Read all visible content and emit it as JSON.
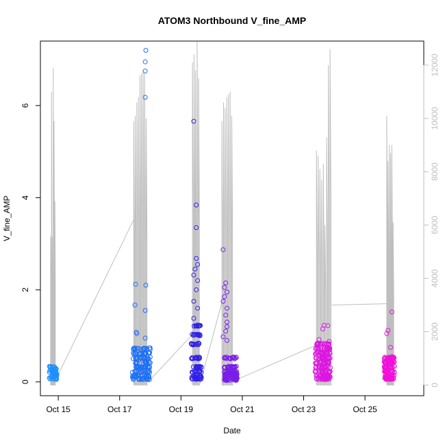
{
  "chart_data": {
    "type": "scatter",
    "title": "ATOM3 Northbound V_fine_AMP",
    "xlabel": "Date",
    "ylabel": "V_fine_AMP",
    "x_axis": {
      "kind": "date",
      "range": [
        "2023-10-14T10:00",
        "2023-10-26T22:00"
      ],
      "ticks": [
        {
          "value": "2023-10-15T00:00",
          "label": "Oct 15"
        },
        {
          "value": "2023-10-17T00:00",
          "label": "Oct 17"
        },
        {
          "value": "2023-10-19T00:00",
          "label": "Oct 19"
        },
        {
          "value": "2023-10-21T00:00",
          "label": "Oct 21"
        },
        {
          "value": "2023-10-23T00:00",
          "label": "Oct 23"
        },
        {
          "value": "2023-10-25T00:00",
          "label": "Oct 25"
        }
      ]
    },
    "y_axis": {
      "range": [
        -0.3,
        7.4
      ],
      "ticks": [
        0,
        2,
        4,
        6
      ]
    },
    "y2_axis": {
      "range": [
        -400,
        12900
      ],
      "ticks": [
        0,
        2000,
        4000,
        6000,
        8000,
        10000,
        12000
      ],
      "color": "#bebebe"
    },
    "grid": false,
    "point_clusters": [
      {
        "color": "#1e90ff",
        "center": "2023-10-14T20:00",
        "spread_hours": 3,
        "n": 60,
        "base_values": [
          0.05,
          0.1,
          0.15,
          0.2,
          0.25,
          0.3
        ],
        "outliers": []
      },
      {
        "color": "#1c6ff8",
        "center": "2023-10-17T17:00",
        "spread_hours": 7,
        "n": 140,
        "base_values": [
          0.05,
          0.1,
          0.2,
          0.3,
          0.4,
          0.5,
          0.6,
          0.7
        ],
        "outliers": [
          {
            "x": "2023-10-17T20:30",
            "y": 7.2
          },
          {
            "x": "2023-10-17T20:00",
            "y": 6.95
          },
          {
            "x": "2023-10-17T20:00",
            "y": 6.75
          },
          {
            "x": "2023-10-17T20:00",
            "y": 6.18
          },
          {
            "x": "2023-10-17T12:30",
            "y": 2.12
          },
          {
            "x": "2023-10-17T20:30",
            "y": 2.1
          },
          {
            "x": "2023-10-17T12:00",
            "y": 1.67
          },
          {
            "x": "2023-10-17T20:00",
            "y": 1.55
          },
          {
            "x": "2023-10-17T13:00",
            "y": 1.08
          },
          {
            "x": "2023-10-17T13:30",
            "y": 1.05
          },
          {
            "x": "2023-10-17T20:00",
            "y": 0.95
          }
        ]
      },
      {
        "color": "#3020e8",
        "center": "2023-10-19T12:00",
        "spread_hours": 4,
        "n": 110,
        "base_values": [
          0.05,
          0.1,
          0.2,
          0.3,
          0.5,
          0.8,
          1.0,
          1.2
        ],
        "outliers": [
          {
            "x": "2023-10-19T10:00",
            "y": 5.66
          },
          {
            "x": "2023-10-19T12:00",
            "y": 3.84
          },
          {
            "x": "2023-10-19T12:00",
            "y": 3.35
          },
          {
            "x": "2023-10-19T12:00",
            "y": 2.68
          },
          {
            "x": "2023-10-19T13:00",
            "y": 2.55
          },
          {
            "x": "2023-10-19T11:00",
            "y": 2.45
          },
          {
            "x": "2023-10-19T10:00",
            "y": 2.32
          },
          {
            "x": "2023-10-19T13:00",
            "y": 2.2
          },
          {
            "x": "2023-10-19T12:00",
            "y": 2.0
          },
          {
            "x": "2023-10-19T10:00",
            "y": 1.75
          },
          {
            "x": "2023-10-19T13:00",
            "y": 1.6
          },
          {
            "x": "2023-10-19T10:00",
            "y": 1.38
          }
        ]
      },
      {
        "color": "#7a1fe8",
        "center": "2023-10-20T15:00",
        "spread_hours": 5,
        "n": 160,
        "base_values": [
          0.03,
          0.06,
          0.1,
          0.15,
          0.2,
          0.3,
          0.5
        ],
        "outliers": [
          {
            "x": "2023-10-20T09:00",
            "y": 2.87
          },
          {
            "x": "2023-10-20T11:00",
            "y": 2.15
          },
          {
            "x": "2023-10-20T10:00",
            "y": 2.05
          },
          {
            "x": "2023-10-20T12:00",
            "y": 1.95
          },
          {
            "x": "2023-10-20T10:00",
            "y": 1.85
          },
          {
            "x": "2023-10-20T09:00",
            "y": 1.75
          },
          {
            "x": "2023-10-20T12:00",
            "y": 1.6
          },
          {
            "x": "2023-10-20T11:00",
            "y": 1.45
          },
          {
            "x": "2023-10-20T12:00",
            "y": 1.3
          },
          {
            "x": "2023-10-20T12:00",
            "y": 1.2
          },
          {
            "x": "2023-10-20T11:00",
            "y": 1.1
          },
          {
            "x": "2023-10-20T09:00",
            "y": 0.98
          },
          {
            "x": "2023-10-20T12:00",
            "y": 0.9
          }
        ]
      },
      {
        "color": "#dd16e0",
        "center": "2023-10-23T15:00",
        "spread_hours": 6,
        "n": 170,
        "base_values": [
          0.05,
          0.1,
          0.2,
          0.3,
          0.4,
          0.5,
          0.6,
          0.7,
          0.8
        ],
        "outliers": [
          {
            "x": "2023-10-23T16:00",
            "y": 1.23
          },
          {
            "x": "2023-10-23T19:00",
            "y": 1.22
          },
          {
            "x": "2023-10-23T15:00",
            "y": 1.15
          },
          {
            "x": "2023-10-23T12:00",
            "y": 0.92
          },
          {
            "x": "2023-10-23T20:00",
            "y": 0.88
          }
        ]
      },
      {
        "color": "#f010d8",
        "center": "2023-10-25T19:00",
        "spread_hours": 4,
        "n": 120,
        "base_values": [
          0.05,
          0.1,
          0.2,
          0.3,
          0.4,
          0.5
        ],
        "outliers": [
          {
            "x": "2023-10-25T21:00",
            "y": 1.52
          },
          {
            "x": "2023-10-25T18:00",
            "y": 1.12
          },
          {
            "x": "2023-10-25T17:00",
            "y": 1.05
          },
          {
            "x": "2023-10-25T20:00",
            "y": 0.75
          },
          {
            "x": "2023-10-25T21:00",
            "y": 0.55
          }
        ]
      }
    ],
    "spike_series": {
      "axis": "y2",
      "color": "#bebebe",
      "groups": [
        {
          "start": "2023-10-14T18:00",
          "end": "2023-10-14T22:00",
          "peaks": [
            5600,
            11000,
            5550,
            11900,
            9900,
            6900
          ]
        },
        {
          "start": "2023-10-17T11:00",
          "end": "2023-10-17T22:00",
          "peaks": [
            9900,
            10100,
            10600,
            10800,
            11600,
            11700,
            11800,
            11700,
            10000
          ]
        },
        {
          "start": "2023-10-19T09:00",
          "end": "2023-10-19T15:00",
          "peaks": [
            12100,
            12400,
            11800,
            12900,
            11500
          ]
        },
        {
          "start": "2023-10-20T08:00",
          "end": "2023-10-20T17:00",
          "peaks": [
            9900,
            10600,
            10400,
            10800,
            10900,
            11000,
            10100
          ]
        },
        {
          "start": "2023-10-23T10:00",
          "end": "2023-10-23T22:00",
          "peaks": [
            8800,
            8600,
            8100,
            7700,
            8300,
            6000,
            9300,
            12000,
            12600
          ]
        },
        {
          "start": "2023-10-25T17:00",
          "end": "2023-10-25T23:00",
          "peaks": [
            10100,
            8400,
            9000,
            8700,
            9000,
            6100
          ]
        }
      ],
      "bridges": [
        {
          "from": {
            "x": "2023-10-14T22:00",
            "y": 200
          },
          "to": {
            "x": "2023-10-17T11:00",
            "y": 6200
          }
        },
        {
          "from": {
            "x": "2023-10-17T22:00",
            "y": 100
          },
          "to": {
            "x": "2023-10-19T09:00",
            "y": 1900
          }
        },
        {
          "from": {
            "x": "2023-10-19T15:00",
            "y": 50
          },
          "to": {
            "x": "2023-10-20T08:00",
            "y": 3100
          }
        },
        {
          "from": {
            "x": "2023-10-20T17:00",
            "y": 150
          },
          "to": {
            "x": "2023-10-23T10:00",
            "y": 1500
          }
        },
        {
          "from": {
            "x": "2023-10-23T22:00",
            "y": 3000
          },
          "to": {
            "x": "2023-10-25T17:00",
            "y": 3050
          }
        }
      ]
    }
  }
}
